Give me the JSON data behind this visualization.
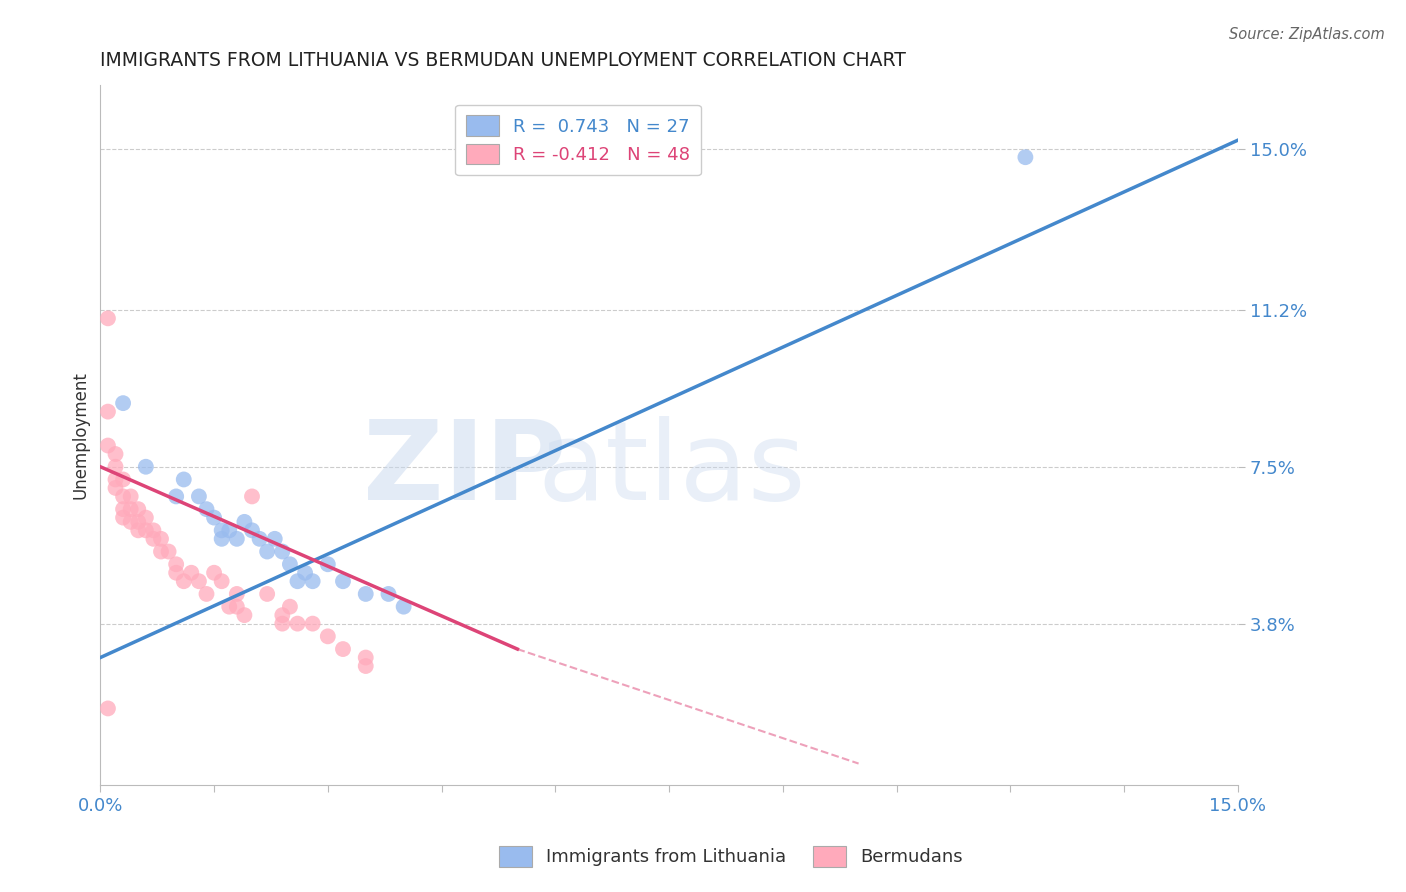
{
  "title": "IMMIGRANTS FROM LITHUANIA VS BERMUDAN UNEMPLOYMENT CORRELATION CHART",
  "source": "Source: ZipAtlas.com",
  "ylabel": "Unemployment",
  "xlim": [
    0.0,
    0.15
  ],
  "ylim": [
    0.0,
    0.165
  ],
  "ytick_values": [
    0.038,
    0.075,
    0.112,
    0.15
  ],
  "ytick_labels": [
    "3.8%",
    "7.5%",
    "11.2%",
    "15.0%"
  ],
  "legend1_R": "0.743",
  "legend1_N": "27",
  "legend2_R": "-0.412",
  "legend2_N": "48",
  "blue_scatter_color": "#99BBEE",
  "pink_scatter_color": "#FFAABB",
  "blue_line_color": "#4488CC",
  "pink_line_color": "#DD4477",
  "watermark_zip": "ZIP",
  "watermark_atlas": "atlas",
  "blue_scatter": [
    [
      0.003,
      0.09
    ],
    [
      0.006,
      0.075
    ],
    [
      0.01,
      0.068
    ],
    [
      0.011,
      0.072
    ],
    [
      0.013,
      0.068
    ],
    [
      0.014,
      0.065
    ],
    [
      0.015,
      0.063
    ],
    [
      0.016,
      0.06
    ],
    [
      0.016,
      0.058
    ],
    [
      0.017,
      0.06
    ],
    [
      0.018,
      0.058
    ],
    [
      0.019,
      0.062
    ],
    [
      0.02,
      0.06
    ],
    [
      0.021,
      0.058
    ],
    [
      0.022,
      0.055
    ],
    [
      0.023,
      0.058
    ],
    [
      0.024,
      0.055
    ],
    [
      0.025,
      0.052
    ],
    [
      0.026,
      0.048
    ],
    [
      0.027,
      0.05
    ],
    [
      0.028,
      0.048
    ],
    [
      0.03,
      0.052
    ],
    [
      0.032,
      0.048
    ],
    [
      0.035,
      0.045
    ],
    [
      0.038,
      0.045
    ],
    [
      0.04,
      0.042
    ],
    [
      0.122,
      0.148
    ]
  ],
  "pink_scatter": [
    [
      0.001,
      0.11
    ],
    [
      0.001,
      0.088
    ],
    [
      0.001,
      0.08
    ],
    [
      0.002,
      0.078
    ],
    [
      0.002,
      0.075
    ],
    [
      0.002,
      0.072
    ],
    [
      0.002,
      0.07
    ],
    [
      0.003,
      0.072
    ],
    [
      0.003,
      0.068
    ],
    [
      0.003,
      0.065
    ],
    [
      0.003,
      0.063
    ],
    [
      0.004,
      0.068
    ],
    [
      0.004,
      0.065
    ],
    [
      0.004,
      0.062
    ],
    [
      0.005,
      0.065
    ],
    [
      0.005,
      0.062
    ],
    [
      0.005,
      0.06
    ],
    [
      0.006,
      0.063
    ],
    [
      0.006,
      0.06
    ],
    [
      0.007,
      0.06
    ],
    [
      0.007,
      0.058
    ],
    [
      0.008,
      0.058
    ],
    [
      0.008,
      0.055
    ],
    [
      0.009,
      0.055
    ],
    [
      0.01,
      0.052
    ],
    [
      0.01,
      0.05
    ],
    [
      0.011,
      0.048
    ],
    [
      0.012,
      0.05
    ],
    [
      0.013,
      0.048
    ],
    [
      0.014,
      0.045
    ],
    [
      0.015,
      0.05
    ],
    [
      0.016,
      0.048
    ],
    [
      0.017,
      0.042
    ],
    [
      0.018,
      0.045
    ],
    [
      0.018,
      0.042
    ],
    [
      0.019,
      0.04
    ],
    [
      0.02,
      0.068
    ],
    [
      0.022,
      0.045
    ],
    [
      0.024,
      0.04
    ],
    [
      0.024,
      0.038
    ],
    [
      0.025,
      0.042
    ],
    [
      0.026,
      0.038
    ],
    [
      0.028,
      0.038
    ],
    [
      0.03,
      0.035
    ],
    [
      0.032,
      0.032
    ],
    [
      0.035,
      0.03
    ],
    [
      0.001,
      0.018
    ],
    [
      0.035,
      0.028
    ]
  ],
  "blue_trend": [
    0.0,
    0.03,
    0.15,
    0.152
  ],
  "pink_trend_solid": [
    0.0,
    0.075,
    0.055,
    0.032
  ],
  "pink_trend_dash": [
    0.055,
    0.032,
    0.1,
    0.005
  ],
  "grid_color": "#CCCCCC",
  "bg_color": "#FFFFFF",
  "text_color_dark": "#333333",
  "text_color_blue": "#4488CC",
  "text_color_pink": "#DD4477",
  "tick_color": "#888888"
}
